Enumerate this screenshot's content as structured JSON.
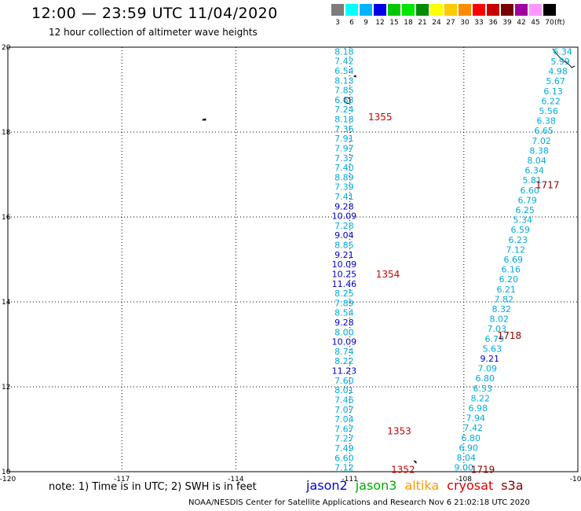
{
  "header": {
    "title": "12:00 — 23:59 UTC 11/04/2020",
    "subtitle": "12 hour collection of altimeter wave heights"
  },
  "legend": {
    "unit": "(ft)",
    "bins": [
      {
        "label": "3",
        "color": "#7d7d7d"
      },
      {
        "label": "6",
        "color": "#00ffff"
      },
      {
        "label": "9",
        "color": "#00b4ff"
      },
      {
        "label": "12",
        "color": "#0000e6"
      },
      {
        "label": "15",
        "color": "#00c800"
      },
      {
        "label": "18",
        "color": "#00e600"
      },
      {
        "label": "21",
        "color": "#008c00"
      },
      {
        "label": "24",
        "color": "#ffff00"
      },
      {
        "label": "27",
        "color": "#ffc800"
      },
      {
        "label": "30",
        "color": "#ff8c00"
      },
      {
        "label": "33",
        "color": "#ff0000"
      },
      {
        "label": "36",
        "color": "#c80000"
      },
      {
        "label": "39",
        "color": "#780000"
      },
      {
        "label": "42",
        "color": "#a000a0"
      },
      {
        "label": "45",
        "color": "#ff96ff"
      },
      {
        "label": "70",
        "color": "#000000"
      }
    ]
  },
  "map": {
    "lon_range": [
      -120,
      -105
    ],
    "lat_range": [
      10,
      20
    ],
    "x_ticks": [
      "-120",
      "-117",
      "-114",
      "-111",
      "-108",
      "-105"
    ],
    "y_ticks": [
      "20",
      "18",
      "16",
      "14",
      "12",
      "10"
    ],
    "track_west": {
      "lon": -111.15,
      "lat_top": 19.9,
      "lat_bottom": 10.1,
      "values": [
        {
          "v": "8.18",
          "c": "#00aadd"
        },
        {
          "v": "7.42",
          "c": "#00aadd"
        },
        {
          "v": "6.54",
          "c": "#00aadd"
        },
        {
          "v": "8.13",
          "c": "#00aadd"
        },
        {
          "v": "7.85",
          "c": "#00aadd"
        },
        {
          "v": "6.63",
          "c": "#00aadd"
        },
        {
          "v": "7.24",
          "c": "#00aadd"
        },
        {
          "v": "8.18",
          "c": "#00aadd"
        },
        {
          "v": "7.36",
          "c": "#00aadd"
        },
        {
          "v": "7.91",
          "c": "#00aadd"
        },
        {
          "v": "7.97",
          "c": "#00aadd"
        },
        {
          "v": "7.37",
          "c": "#00aadd"
        },
        {
          "v": "7.40",
          "c": "#00aadd"
        },
        {
          "v": "8.89",
          "c": "#00aadd"
        },
        {
          "v": "7.39",
          "c": "#00aadd"
        },
        {
          "v": "7.41",
          "c": "#00aadd"
        },
        {
          "v": "9.28",
          "c": "#0000cc"
        },
        {
          "v": "10.09",
          "c": "#0000cc"
        },
        {
          "v": "7.28",
          "c": "#00aadd"
        },
        {
          "v": "9.04",
          "c": "#0000cc"
        },
        {
          "v": "8.85",
          "c": "#00aadd"
        },
        {
          "v": "9.21",
          "c": "#0000cc"
        },
        {
          "v": "10.09",
          "c": "#0000cc"
        },
        {
          "v": "10.25",
          "c": "#0000cc"
        },
        {
          "v": "11.46",
          "c": "#0000cc"
        },
        {
          "v": "8.25",
          "c": "#00aadd"
        },
        {
          "v": "7.89",
          "c": "#00aadd"
        },
        {
          "v": "8.54",
          "c": "#00aadd"
        },
        {
          "v": "9.28",
          "c": "#0000cc"
        },
        {
          "v": "8.00",
          "c": "#00aadd"
        },
        {
          "v": "10.09",
          "c": "#0000cc"
        },
        {
          "v": "8.74",
          "c": "#00aadd"
        },
        {
          "v": "8.22",
          "c": "#00aadd"
        },
        {
          "v": "11.23",
          "c": "#0000cc"
        },
        {
          "v": "7.60",
          "c": "#00aadd"
        },
        {
          "v": "8.01",
          "c": "#00aadd"
        },
        {
          "v": "7.46",
          "c": "#00aadd"
        },
        {
          "v": "7.07",
          "c": "#00aadd"
        },
        {
          "v": "7.04",
          "c": "#00aadd"
        },
        {
          "v": "7.67",
          "c": "#00aadd"
        },
        {
          "v": "7.27",
          "c": "#00aadd"
        },
        {
          "v": "7.49",
          "c": "#00aadd"
        },
        {
          "v": "6.60",
          "c": "#00aadd"
        },
        {
          "v": "7.12",
          "c": "#00aadd"
        }
      ],
      "times": [
        {
          "t": "1355",
          "lat": 18.35,
          "lon": -110.2
        },
        {
          "t": "1354",
          "lat": 14.65,
          "lon": -110.0
        },
        {
          "t": "1353",
          "lat": 10.95,
          "lon": -109.7
        },
        {
          "t": "1352",
          "lat": 10.05,
          "lon": -109.6
        }
      ]
    },
    "track_east": {
      "lon_top": -105.4,
      "lat_top": 19.9,
      "lon_bottom": -108.0,
      "lat_bottom": 10.1,
      "values": [
        {
          "v": "6.34",
          "c": "#00aadd"
        },
        {
          "v": "5.99",
          "c": "#00aadd"
        },
        {
          "v": "4.98",
          "c": "#00aadd"
        },
        {
          "v": "5.67",
          "c": "#00aadd"
        },
        {
          "v": "6.13",
          "c": "#00aadd"
        },
        {
          "v": "6.22",
          "c": "#00aadd"
        },
        {
          "v": "5.56",
          "c": "#00aadd"
        },
        {
          "v": "6.38",
          "c": "#00aadd"
        },
        {
          "v": "6.65",
          "c": "#00aadd"
        },
        {
          "v": "7.02",
          "c": "#00aadd"
        },
        {
          "v": "8.38",
          "c": "#00aadd"
        },
        {
          "v": "8.04",
          "c": "#00aadd"
        },
        {
          "v": "6.34",
          "c": "#00aadd"
        },
        {
          "v": "5.81",
          "c": "#00aadd"
        },
        {
          "v": "6.60",
          "c": "#00aadd"
        },
        {
          "v": "6.79",
          "c": "#00aadd"
        },
        {
          "v": "6.25",
          "c": "#00aadd"
        },
        {
          "v": "5.34",
          "c": "#00aadd"
        },
        {
          "v": "6.59",
          "c": "#00aadd"
        },
        {
          "v": "6.23",
          "c": "#00aadd"
        },
        {
          "v": "7.12",
          "c": "#00aadd"
        },
        {
          "v": "6.69",
          "c": "#00aadd"
        },
        {
          "v": "6.16",
          "c": "#00aadd"
        },
        {
          "v": "6.20",
          "c": "#00aadd"
        },
        {
          "v": "6.21",
          "c": "#00aadd"
        },
        {
          "v": "7.82",
          "c": "#00aadd"
        },
        {
          "v": "8.32",
          "c": "#00aadd"
        },
        {
          "v": "8.02",
          "c": "#00aadd"
        },
        {
          "v": "7.03",
          "c": "#00aadd"
        },
        {
          "v": "6.79",
          "c": "#00aadd"
        },
        {
          "v": "5.63",
          "c": "#00aadd"
        },
        {
          "v": "9.21",
          "c": "#0000cc"
        },
        {
          "v": "7.09",
          "c": "#00aadd"
        },
        {
          "v": "6.80",
          "c": "#00aadd"
        },
        {
          "v": "6.53",
          "c": "#00aadd"
        },
        {
          "v": "8.22",
          "c": "#00aadd"
        },
        {
          "v": "6.98",
          "c": "#00aadd"
        },
        {
          "v": "7.94",
          "c": "#00aadd"
        },
        {
          "v": "7.42",
          "c": "#00aadd"
        },
        {
          "v": "6.80",
          "c": "#00aadd"
        },
        {
          "v": "6.90",
          "c": "#00aadd"
        },
        {
          "v": "8.04",
          "c": "#00aadd"
        },
        {
          "v": "9.00",
          "c": "#00aadd"
        }
      ],
      "times": [
        {
          "t": "1717",
          "lat": 16.75,
          "lon": -105.8
        },
        {
          "t": "1718",
          "lat": 13.2,
          "lon": -106.8
        },
        {
          "t": "1719",
          "lat": 10.05,
          "lon": -107.5
        }
      ]
    }
  },
  "footer": {
    "note": "note:  1) Time is in UTC;  2) SWH is in feet",
    "satellites": [
      {
        "name": "jason2",
        "color": "#0000dd"
      },
      {
        "name": "jason3",
        "color": "#00aa00"
      },
      {
        "name": "altika",
        "color": "#ff9900"
      },
      {
        "name": "cryosat",
        "color": "#dd0000"
      },
      {
        "name": "s3a",
        "color": "#880000"
      }
    ],
    "credit": "NOAA/NESDIS Center for Satellite Applications and Research     Nov  6 21:02:18 UTC 2020"
  }
}
